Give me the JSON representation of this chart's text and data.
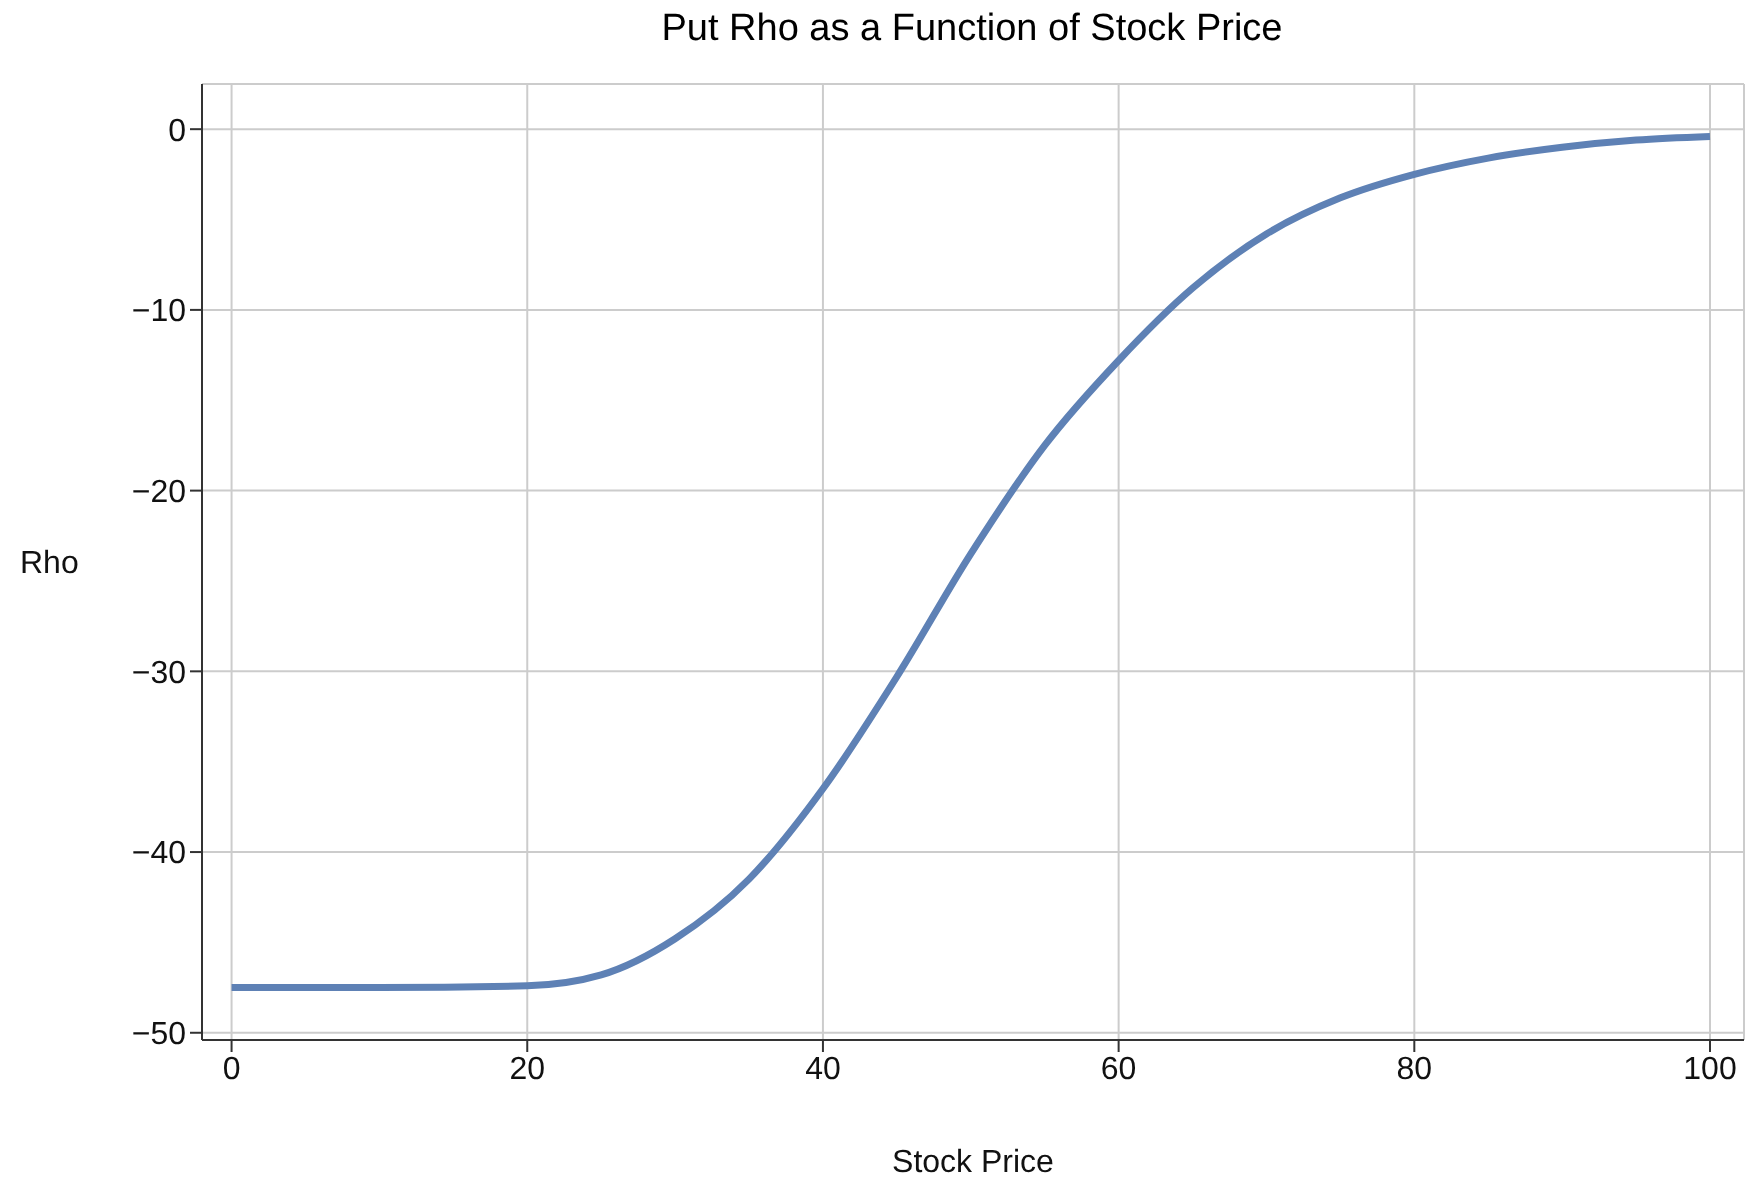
{
  "chart_data": {
    "type": "line",
    "title": "Put Rho as a Function of Stock Price",
    "xlabel": "Stock Price",
    "ylabel": "Rho",
    "x": [
      0,
      10,
      20,
      25,
      30,
      35,
      40,
      45,
      50,
      55,
      60,
      65,
      70,
      75,
      80,
      85,
      90,
      95,
      100
    ],
    "series": [
      {
        "color": "#5e81b5",
        "values": [
          -47.5,
          -47.5,
          -47.4,
          -46.8,
          -44.8,
          -41.5,
          -36.5,
          -30.3,
          -23.5,
          -17.5,
          -12.8,
          -8.8,
          -5.8,
          -3.8,
          -2.5,
          -1.6,
          -1.0,
          -0.6,
          -0.4
        ]
      }
    ],
    "xlim": [
      -2,
      102.3
    ],
    "ylim": [
      -50.4,
      2.5
    ],
    "xticks": [
      0,
      20,
      40,
      60,
      80,
      100
    ],
    "yticks": [
      0,
      {
        "value": -10,
        "label": "−10"
      },
      {
        "value": -20,
        "label": "−20"
      },
      {
        "value": -30,
        "label": "−30"
      },
      {
        "value": -40,
        "label": "−40"
      },
      {
        "value": -50,
        "label": "−50"
      }
    ],
    "grid": true,
    "legend": false,
    "marker": "none",
    "line_style": "solid"
  }
}
